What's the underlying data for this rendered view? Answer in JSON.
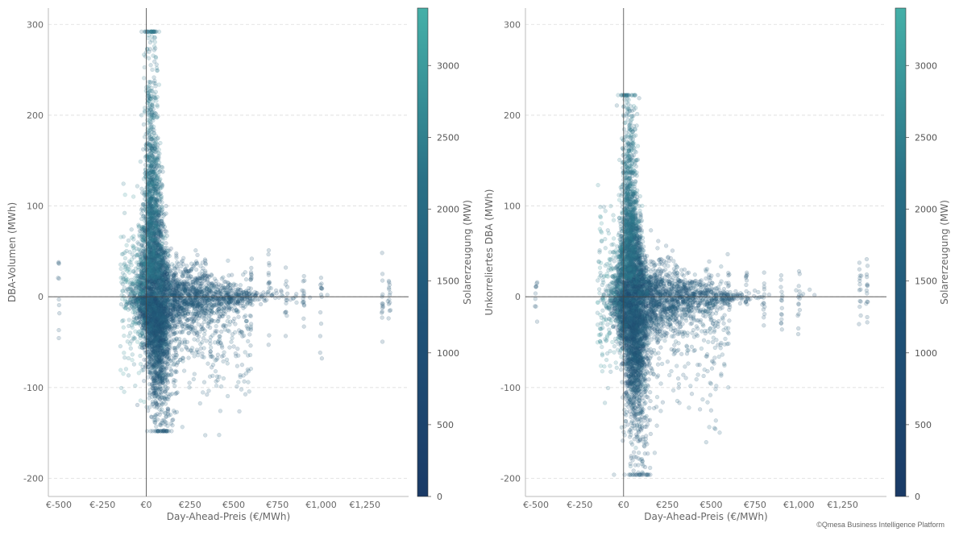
{
  "watermark": "©Qmesa Business Intelligence Platform",
  "colors": {
    "dark_blue": "#1a3a66",
    "mid_teal": "#2e7a8c",
    "light_teal": "#45b0a8",
    "axis_gray": "#bbbbbb",
    "grid_gray": "#dddddd",
    "zero_line": "#444444",
    "text_gray": "#666666"
  },
  "chart_data": [
    {
      "type": "scatter",
      "id": "left",
      "xlabel": "Day-Ahead-Preis (€/MWh)",
      "ylabel": "DBA-Volumen (MWh)",
      "colorbar_label": "Solarerzeugung (MW)",
      "xlim": [
        -560,
        1500
      ],
      "ylim": [
        -220,
        318
      ],
      "x_ticks": [
        -500,
        -250,
        0,
        250,
        500,
        750,
        1000,
        1250
      ],
      "x_tick_labels": [
        "€-500",
        "€-250",
        "€0",
        "€250",
        "€500",
        "€750",
        "€1,000",
        "€1,250"
      ],
      "y_ticks": [
        300,
        200,
        100,
        0,
        -100,
        -200
      ],
      "y_tick_labels": [
        "300",
        "200",
        "100",
        "0",
        "-100",
        "-200"
      ],
      "colorbar_range": [
        0,
        3400
      ],
      "colorbar_ticks": [
        0,
        500,
        1000,
        1500,
        2000,
        2500,
        3000
      ],
      "colorbar_tick_labels": [
        "0",
        "500",
        "1000",
        "1500",
        "2000",
        "2500",
        "3000"
      ],
      "point_alpha": 0.2,
      "grid_y": true,
      "approx_distribution": {
        "peak_upper": 292,
        "peak_lower": -148,
        "main_price_range": [
          -100,
          300
        ],
        "outlier_price_columns": [
          -500,
          600,
          700,
          800,
          900,
          1000,
          1350,
          1390
        ]
      }
    },
    {
      "type": "scatter",
      "id": "right",
      "xlabel": "Day-Ahead-Preis (€/MWh)",
      "ylabel": "Unkorreliertes DBA (MWh)",
      "colorbar_label": "Solarerzeugung (MW)",
      "xlim": [
        -560,
        1500
      ],
      "ylim": [
        -220,
        318
      ],
      "x_ticks": [
        -500,
        -250,
        0,
        250,
        500,
        750,
        1000,
        1250
      ],
      "x_tick_labels": [
        "€-500",
        "€-250",
        "€0",
        "€250",
        "€500",
        "€750",
        "€1,000",
        "€1,250"
      ],
      "y_ticks": [
        300,
        200,
        100,
        0,
        -100,
        -200
      ],
      "y_tick_labels": [
        "300",
        "200",
        "100",
        "0",
        "-100",
        "-200"
      ],
      "colorbar_range": [
        0,
        3400
      ],
      "colorbar_ticks": [
        0,
        500,
        1000,
        1500,
        2000,
        2500,
        3000
      ],
      "colorbar_tick_labels": [
        "0",
        "500",
        "1000",
        "1500",
        "2000",
        "2500",
        "3000"
      ],
      "point_alpha": 0.2,
      "grid_y": true,
      "approx_distribution": {
        "peak_upper": 222,
        "peak_lower": -196,
        "main_price_range": [
          -120,
          300
        ],
        "outlier_price_columns": [
          -500,
          600,
          700,
          800,
          900,
          1000,
          1350,
          1390
        ]
      }
    }
  ]
}
